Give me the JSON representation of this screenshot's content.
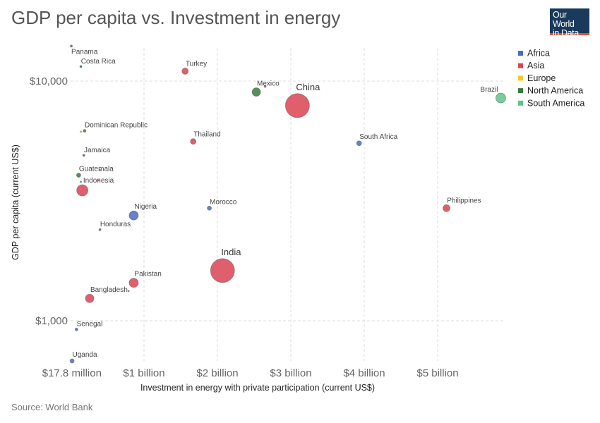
{
  "header": {
    "title": "GDP per capita vs. Investment in energy",
    "logo_line1": "Our World",
    "logo_line2": "in Data"
  },
  "footer": {
    "source": "Source: World Bank"
  },
  "colors": {
    "Africa": "#4c6bc1",
    "Asia": "#d94452",
    "Europe": "#f5c929",
    "North America": "#3a7a3a",
    "South America": "#5fc48a"
  },
  "chart_data": {
    "type": "scatter",
    "title": "GDP per capita vs. Investment in energy",
    "xlabel": "Investment in energy with private participation (current US$)",
    "ylabel": "GDP per capita (current US$)",
    "xscale": "linear",
    "yscale": "log",
    "xlim": [
      0,
      5.9
    ],
    "ylim": [
      680,
      14500
    ],
    "x_unit": "billion US$",
    "x_ticks": [
      {
        "value": 0.0178,
        "label": "$17.8 million"
      },
      {
        "value": 1,
        "label": "$1 billion"
      },
      {
        "value": 2,
        "label": "$2 billion"
      },
      {
        "value": 3,
        "label": "$3 billion"
      },
      {
        "value": 4,
        "label": "$4 billion"
      },
      {
        "value": 5,
        "label": "$5 billion"
      }
    ],
    "y_ticks": [
      {
        "value": 1000,
        "label": "$1,000"
      },
      {
        "value": 10000,
        "label": "$10,000"
      }
    ],
    "legend": {
      "position": "top-right",
      "entries": [
        "Africa",
        "Asia",
        "Europe",
        "North America",
        "South America"
      ]
    },
    "points": [
      {
        "name": "Panama",
        "x": 0.01,
        "y": 14000,
        "region": "North America",
        "size": 1.5,
        "label": "Panama"
      },
      {
        "name": "Costa Rica",
        "x": 0.14,
        "y": 11500,
        "region": "North America",
        "size": 1.5,
        "label": "Costa Rica"
      },
      {
        "name": "Turkey",
        "x": 1.56,
        "y": 11000,
        "region": "Asia",
        "size": 4.5,
        "label": "Turkey"
      },
      {
        "name": "Mexico",
        "x": 2.53,
        "y": 9000,
        "region": "North America",
        "size": 6,
        "label": "Mexico"
      },
      {
        "name": "Mexico (small)",
        "x": 2.65,
        "y": 9500,
        "region": "Asia",
        "size": 1.5,
        "label": ""
      },
      {
        "name": "China",
        "x": 3.09,
        "y": 7900,
        "region": "Asia",
        "size": 17,
        "label": "China"
      },
      {
        "name": "Brazil",
        "x": 5.86,
        "y": 8500,
        "region": "South America",
        "size": 7,
        "label": "Brazil"
      },
      {
        "name": "Dominican Republic",
        "x": 0.19,
        "y": 6200,
        "region": "North America",
        "size": 2,
        "label": "Dominican Republic"
      },
      {
        "name": "Dominican Republic (small)",
        "x": 0.14,
        "y": 6150,
        "region": "Europe",
        "size": 1,
        "label": ""
      },
      {
        "name": "Thailand",
        "x": 1.67,
        "y": 5600,
        "region": "Asia",
        "size": 4,
        "label": "Thailand"
      },
      {
        "name": "South Africa",
        "x": 3.93,
        "y": 5500,
        "region": "Africa",
        "size": 3.5,
        "label": "South Africa"
      },
      {
        "name": "Jamaica",
        "x": 0.18,
        "y": 4900,
        "region": "North America",
        "size": 1.5,
        "label": "Jamaica"
      },
      {
        "name": "Guatemala",
        "x": 0.11,
        "y": 4050,
        "region": "North America",
        "size": 3,
        "label": "Guatemala"
      },
      {
        "name": "Guatemala (small)",
        "x": 0.4,
        "y": 4250,
        "region": "Asia",
        "size": 1,
        "label": ""
      },
      {
        "name": "Indonesia (small a)",
        "x": 0.14,
        "y": 3800,
        "region": "North America",
        "size": 1,
        "label": ""
      },
      {
        "name": "Indonesia (small b)",
        "x": 0.38,
        "y": 3850,
        "region": "Asia",
        "size": 1,
        "label": ""
      },
      {
        "name": "Indonesia",
        "x": 0.16,
        "y": 3500,
        "region": "Asia",
        "size": 8,
        "label": "Indonesia"
      },
      {
        "name": "Morocco",
        "x": 1.89,
        "y": 2950,
        "region": "Africa",
        "size": 3,
        "label": "Morocco"
      },
      {
        "name": "Philippines",
        "x": 5.12,
        "y": 2950,
        "region": "Asia",
        "size": 5,
        "label": "Philippines"
      },
      {
        "name": "Nigeria",
        "x": 0.86,
        "y": 2750,
        "region": "Africa",
        "size": 6.5,
        "label": "Nigeria"
      },
      {
        "name": "Honduras",
        "x": 0.4,
        "y": 2400,
        "region": "North America",
        "size": 1.5,
        "label": "Honduras"
      },
      {
        "name": "India",
        "x": 2.07,
        "y": 1620,
        "region": "Asia",
        "size": 17,
        "label": "India"
      },
      {
        "name": "Pakistan",
        "x": 0.86,
        "y": 1440,
        "region": "Asia",
        "size": 6.5,
        "label": "Pakistan"
      },
      {
        "name": "Pakistan (small)",
        "x": 0.79,
        "y": 1330,
        "region": "Africa",
        "size": 1,
        "label": ""
      },
      {
        "name": "Bangladesh",
        "x": 0.26,
        "y": 1240,
        "region": "Asia",
        "size": 6,
        "label": "Bangladesh"
      },
      {
        "name": "Senegal",
        "x": 0.08,
        "y": 920,
        "region": "Africa",
        "size": 2,
        "label": "Senegal"
      },
      {
        "name": "Uganda",
        "x": 0.02,
        "y": 680,
        "region": "Africa",
        "size": 3,
        "label": "Uganda"
      }
    ]
  }
}
